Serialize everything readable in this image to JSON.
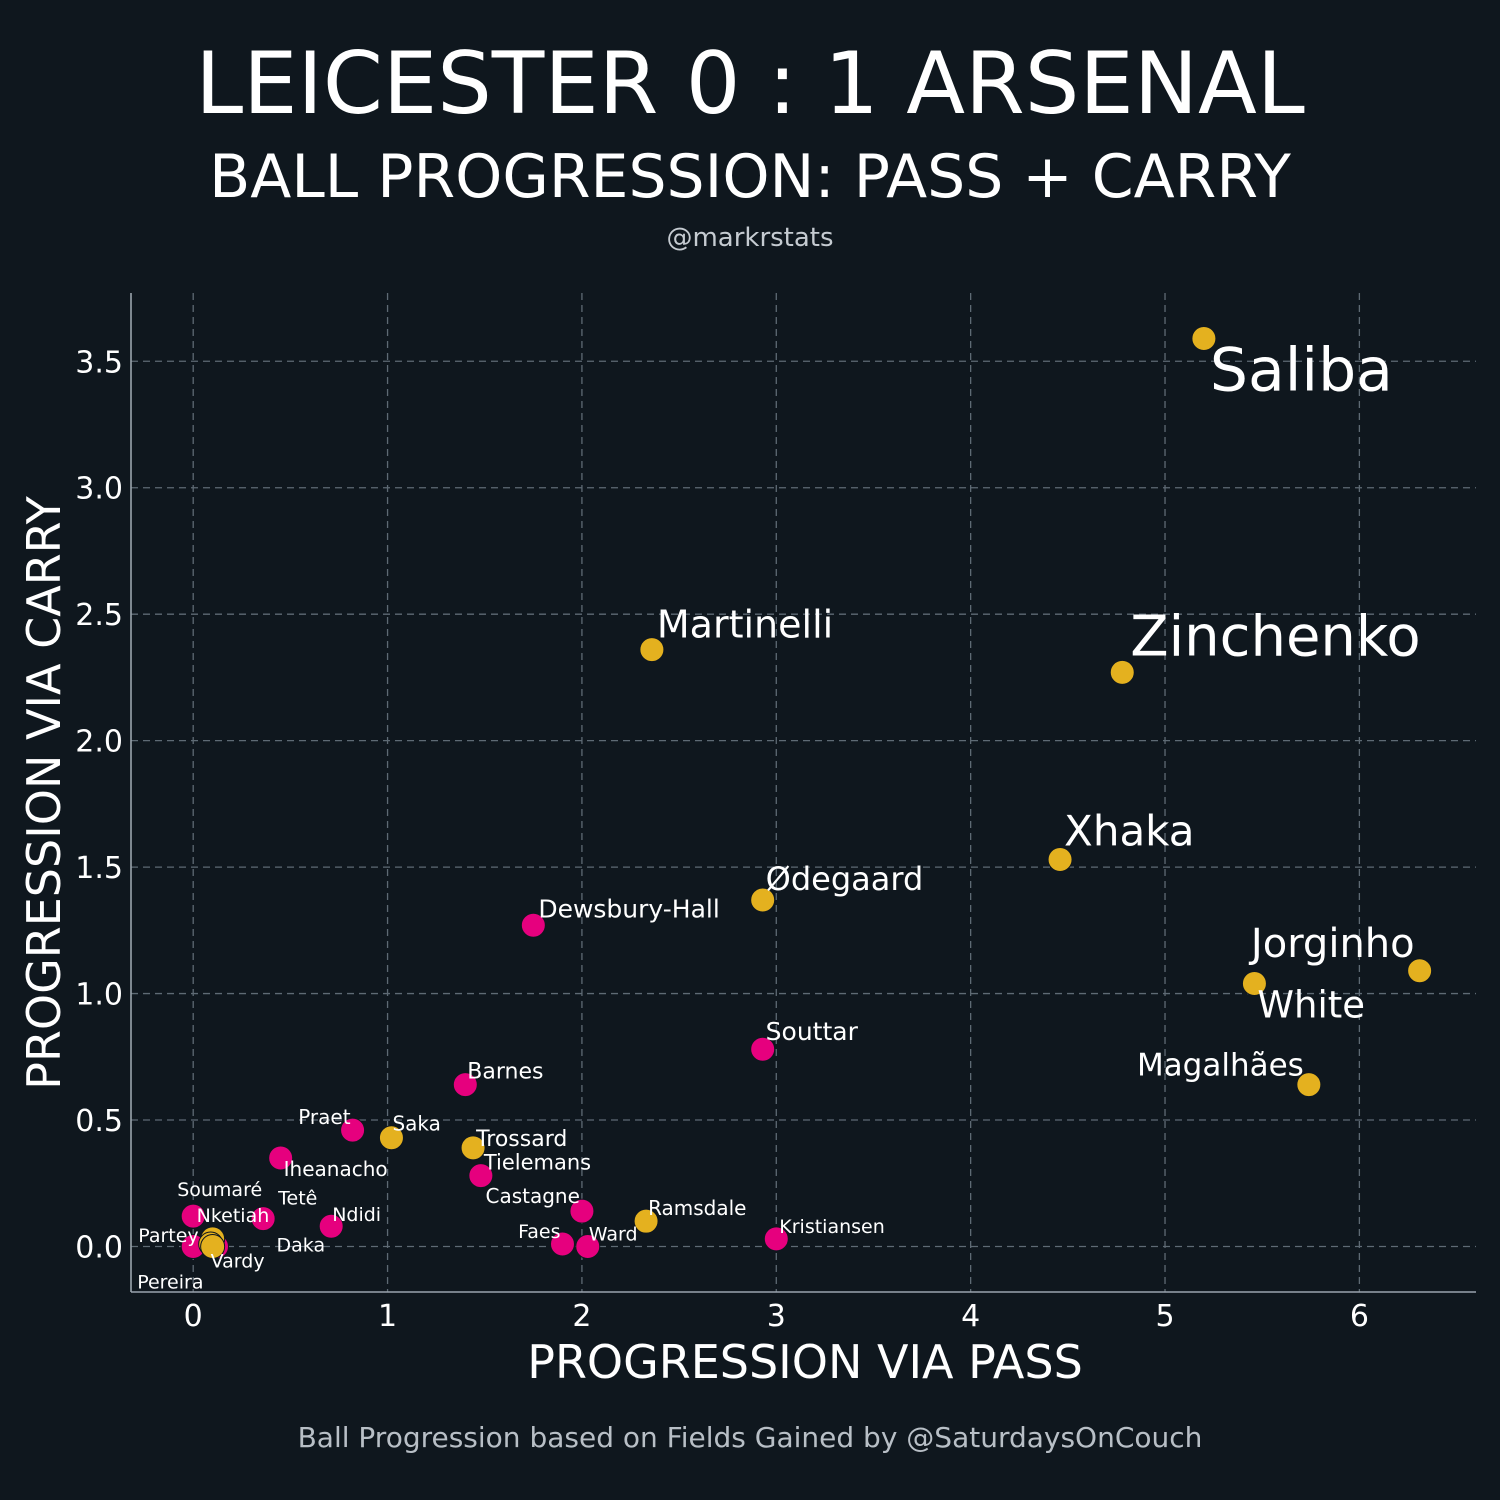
{
  "header": {
    "title": "LEICESTER 0 : 1 ARSENAL",
    "subtitle": "BALL PROGRESSION: PASS + CARRY",
    "credit": "@markrstats"
  },
  "footer": {
    "note": "Ball Progression based on Fields Gained by @SaturdaysOnCouch"
  },
  "colors": {
    "background": "#0f171e",
    "leicester": "#e6007e",
    "arsenal": "#e4b11f"
  },
  "chart_data": {
    "type": "scatter",
    "title": "LEICESTER 0 : 1 ARSENAL",
    "subtitle": "BALL PROGRESSION: PASS + CARRY",
    "xlabel": "PROGRESSION VIA PASS",
    "ylabel": "PROGRESSION VIA CARRY",
    "xlim": [
      -0.32,
      6.6
    ],
    "ylim": [
      -0.18,
      3.77
    ],
    "xticks": [
      0,
      1,
      2,
      3,
      4,
      5,
      6
    ],
    "xtick_labels": [
      "0",
      "1",
      "2",
      "3",
      "4",
      "5",
      "6"
    ],
    "yticks": [
      0.0,
      0.5,
      1.0,
      1.5,
      2.0,
      2.5,
      3.0,
      3.5
    ],
    "ytick_labels": [
      "0.0",
      "0.5",
      "1.0",
      "1.5",
      "2.0",
      "2.5",
      "3.0",
      "3.5"
    ],
    "grid": true,
    "series": [
      {
        "name": "Leicester",
        "color": "#e6007e",
        "points": [
          {
            "name": "Dewsbury-Hall",
            "x": 1.75,
            "y": 1.27
          },
          {
            "name": "Souttar",
            "x": 2.93,
            "y": 0.78
          },
          {
            "name": "Barnes",
            "x": 1.4,
            "y": 0.64
          },
          {
            "name": "Praet",
            "x": 0.82,
            "y": 0.46
          },
          {
            "name": "Iheanacho",
            "x": 0.45,
            "y": 0.35
          },
          {
            "name": "Tielemans",
            "x": 1.48,
            "y": 0.28
          },
          {
            "name": "Castagne",
            "x": 2.0,
            "y": 0.14
          },
          {
            "name": "Soumaré",
            "x": 0.0,
            "y": 0.12
          },
          {
            "name": "Tetê",
            "x": 0.36,
            "y": 0.11
          },
          {
            "name": "Ndidi",
            "x": 0.71,
            "y": 0.08
          },
          {
            "name": "Kristiansen",
            "x": 3.0,
            "y": 0.03
          },
          {
            "name": "Faes",
            "x": 1.9,
            "y": 0.01
          },
          {
            "name": "Ward",
            "x": 2.03,
            "y": 0.0
          },
          {
            "name": "Daka",
            "x": 0.12,
            "y": 0.0
          },
          {
            "name": "Pereira",
            "x": 0.0,
            "y": 0.0
          }
        ]
      },
      {
        "name": "Arsenal",
        "color": "#e4b11f",
        "points": [
          {
            "name": "Saliba",
            "x": 5.2,
            "y": 3.59
          },
          {
            "name": "Martinelli",
            "x": 2.36,
            "y": 2.36
          },
          {
            "name": "Zinchenko",
            "x": 4.78,
            "y": 2.27
          },
          {
            "name": "Xhaka",
            "x": 4.46,
            "y": 1.53
          },
          {
            "name": "Ødegaard",
            "x": 2.93,
            "y": 1.37
          },
          {
            "name": "Jorginho",
            "x": 6.31,
            "y": 1.09
          },
          {
            "name": "White",
            "x": 5.46,
            "y": 1.04
          },
          {
            "name": "Magalhães",
            "x": 5.74,
            "y": 0.64
          },
          {
            "name": "Saka",
            "x": 1.02,
            "y": 0.43
          },
          {
            "name": "Trossard",
            "x": 1.44,
            "y": 0.39
          },
          {
            "name": "Ramsdale",
            "x": 2.33,
            "y": 0.1
          },
          {
            "name": "Nketiah",
            "x": 0.1,
            "y": 0.03
          },
          {
            "name": "Partey",
            "x": 0.09,
            "y": 0.01
          },
          {
            "name": "Vardy",
            "x": 0.1,
            "y": 0.0
          }
        ]
      }
    ]
  }
}
